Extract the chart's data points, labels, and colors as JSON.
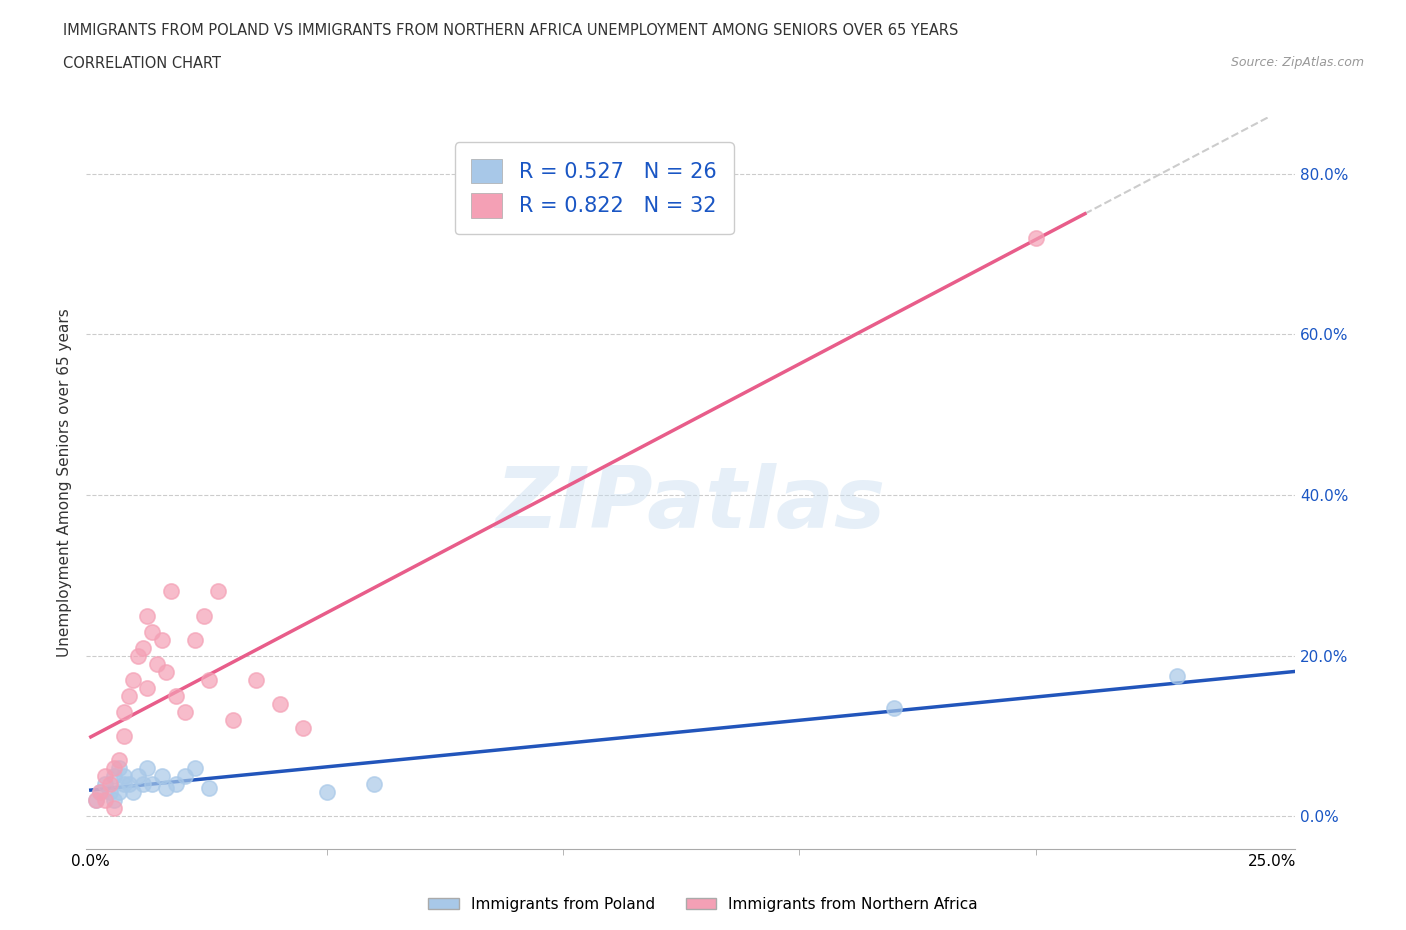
{
  "title_line1": "IMMIGRANTS FROM POLAND VS IMMIGRANTS FROM NORTHERN AFRICA UNEMPLOYMENT AMONG SENIORS OVER 65 YEARS",
  "title_line2": "CORRELATION CHART",
  "source_text": "Source: ZipAtlas.com",
  "ylabel": "Unemployment Among Seniors over 65 years",
  "watermark": "ZIPatlas",
  "xlim": [
    -0.001,
    0.255
  ],
  "ylim": [
    -0.04,
    0.87
  ],
  "xtick_labels": [
    "0.0%",
    "25.0%"
  ],
  "xtick_values": [
    0.0,
    0.25
  ],
  "xtick_minor_values": [
    0.05,
    0.1,
    0.15,
    0.2
  ],
  "ytick_labels": [
    "0.0%",
    "20.0%",
    "40.0%",
    "60.0%",
    "80.0%"
  ],
  "ytick_values": [
    0.0,
    0.2,
    0.4,
    0.6,
    0.8
  ],
  "poland_scatter_color": "#a8c8e8",
  "n_africa_scatter_color": "#f4a0b5",
  "poland_line_color": "#2255bb",
  "n_africa_line_color": "#e85d8a",
  "R_poland": 0.527,
  "N_poland": 26,
  "R_n_africa": 0.822,
  "N_n_africa": 32,
  "legend_text_color": "#1a56c4",
  "poland_scatter_x": [
    0.001,
    0.002,
    0.003,
    0.004,
    0.005,
    0.005,
    0.006,
    0.006,
    0.007,
    0.007,
    0.008,
    0.009,
    0.01,
    0.011,
    0.012,
    0.013,
    0.015,
    0.016,
    0.018,
    0.02,
    0.022,
    0.025,
    0.05,
    0.06,
    0.17,
    0.23
  ],
  "poland_scatter_y": [
    0.02,
    0.03,
    0.04,
    0.03,
    0.05,
    0.02,
    0.06,
    0.03,
    0.05,
    0.04,
    0.04,
    0.03,
    0.05,
    0.04,
    0.06,
    0.04,
    0.05,
    0.035,
    0.04,
    0.05,
    0.06,
    0.035,
    0.03,
    0.04,
    0.135,
    0.175
  ],
  "n_africa_scatter_x": [
    0.001,
    0.002,
    0.003,
    0.003,
    0.004,
    0.005,
    0.005,
    0.006,
    0.007,
    0.007,
    0.008,
    0.009,
    0.01,
    0.011,
    0.012,
    0.012,
    0.013,
    0.014,
    0.015,
    0.016,
    0.017,
    0.018,
    0.02,
    0.022,
    0.024,
    0.025,
    0.027,
    0.03,
    0.035,
    0.04,
    0.045,
    0.2
  ],
  "n_africa_scatter_y": [
    0.02,
    0.03,
    0.02,
    0.05,
    0.04,
    0.01,
    0.06,
    0.07,
    0.1,
    0.13,
    0.15,
    0.17,
    0.2,
    0.21,
    0.16,
    0.25,
    0.23,
    0.19,
    0.22,
    0.18,
    0.28,
    0.15,
    0.13,
    0.22,
    0.25,
    0.17,
    0.28,
    0.12,
    0.17,
    0.14,
    0.11,
    0.72
  ],
  "trendline_dashed_color": "#cccccc",
  "n_africa_line_start_x": 0.0,
  "n_africa_line_end_x": 0.255,
  "poland_line_start_x": 0.0,
  "poland_line_end_x": 0.255
}
